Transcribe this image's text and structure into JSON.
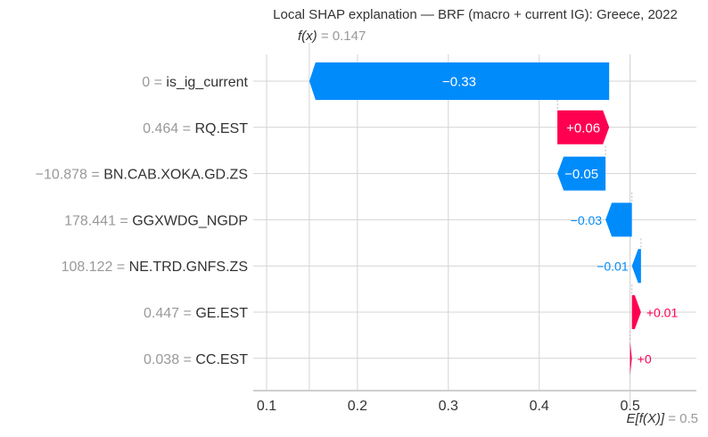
{
  "chart_data": {
    "type": "waterfall",
    "title": "Local SHAP explanation — BRF (macro + current IG): Greece, 2022",
    "fx_label": "f(x)",
    "fx_value": "0.147",
    "ex_label": "E[f(X)]",
    "ex_value": "0.5",
    "base_value": 0.5,
    "final_value": 0.147,
    "xlim": [
      0.0853,
      0.573
    ],
    "xticks": [
      0.1,
      0.2,
      0.3,
      0.4,
      0.5
    ],
    "xtick_labels": [
      "0.1",
      "0.2",
      "0.3",
      "0.4",
      "0.5"
    ],
    "colors": {
      "positive": "#ff0051",
      "negative": "#008bfb"
    },
    "features": [
      {
        "value": "0",
        "name": "is_ig_current",
        "shap": -0.33,
        "label": "−0.33"
      },
      {
        "value": "0.464",
        "name": "RQ.EST",
        "shap": 0.057,
        "label": "+0.06"
      },
      {
        "value": "−10.878",
        "name": "BN.CAB.XOKA.GD.ZS",
        "shap": -0.053,
        "label": "−0.05"
      },
      {
        "value": "178.441",
        "name": "GGXWDG_NGDP",
        "shap": -0.029,
        "label": "−0.03"
      },
      {
        "value": "108.122",
        "name": "NE.TRD.GNFS.ZS",
        "shap": -0.01,
        "label": "−0.01"
      },
      {
        "value": "0.447",
        "name": "GE.EST",
        "shap": 0.01,
        "label": "+0.01"
      },
      {
        "value": "0.038",
        "name": "CC.EST",
        "shap": 0.002,
        "label": "+0"
      }
    ]
  }
}
